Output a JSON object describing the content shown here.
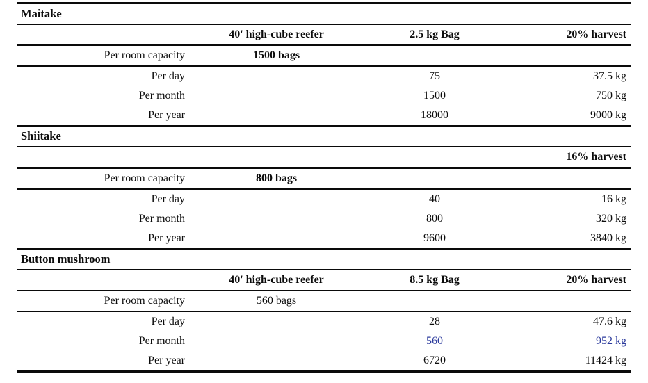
{
  "colors": {
    "text": "#0c0c0c",
    "rule": "#0a0a0a",
    "highlight_blue": "#2b3a9c",
    "background": "#ffffff"
  },
  "sections": [
    {
      "title": "Maitake",
      "header": {
        "reefer": "40' high-cube reefer",
        "bag": "2.5 kg Bag",
        "harvest": "20% harvest"
      },
      "capacity": {
        "label": "Per room capacity",
        "value": "1500 bags"
      },
      "rows": [
        {
          "label": "Per day",
          "bags": "75",
          "harvest": "37.5 kg"
        },
        {
          "label": "Per month",
          "bags": "1500",
          "harvest": "750 kg"
        },
        {
          "label": "Per year",
          "bags": "18000",
          "harvest": "9000 kg"
        }
      ]
    },
    {
      "title": "Shiitake",
      "header": {
        "reefer": "",
        "bag": "",
        "harvest": "16% harvest"
      },
      "capacity": {
        "label": "Per room capacity",
        "value": "800 bags"
      },
      "rows": [
        {
          "label": "Per day",
          "bags": "40",
          "harvest": "16 kg"
        },
        {
          "label": "Per month",
          "bags": "800",
          "harvest": "320 kg"
        },
        {
          "label": "Per year",
          "bags": "9600",
          "harvest": "3840 kg"
        }
      ]
    },
    {
      "title": "Button mushroom",
      "header": {
        "reefer": "40' high-cube reefer",
        "bag": "8.5 kg Bag",
        "harvest": "20% harvest"
      },
      "capacity": {
        "label": "Per room capacity",
        "value": "560 bags"
      },
      "rows": [
        {
          "label": "Per day",
          "bags": "28",
          "harvest": "47.6 kg"
        },
        {
          "label": "Per month",
          "bags": "560",
          "harvest": "952 kg"
        },
        {
          "label": "Per year",
          "bags": "6720",
          "harvest": "11424 kg"
        }
      ]
    }
  ]
}
